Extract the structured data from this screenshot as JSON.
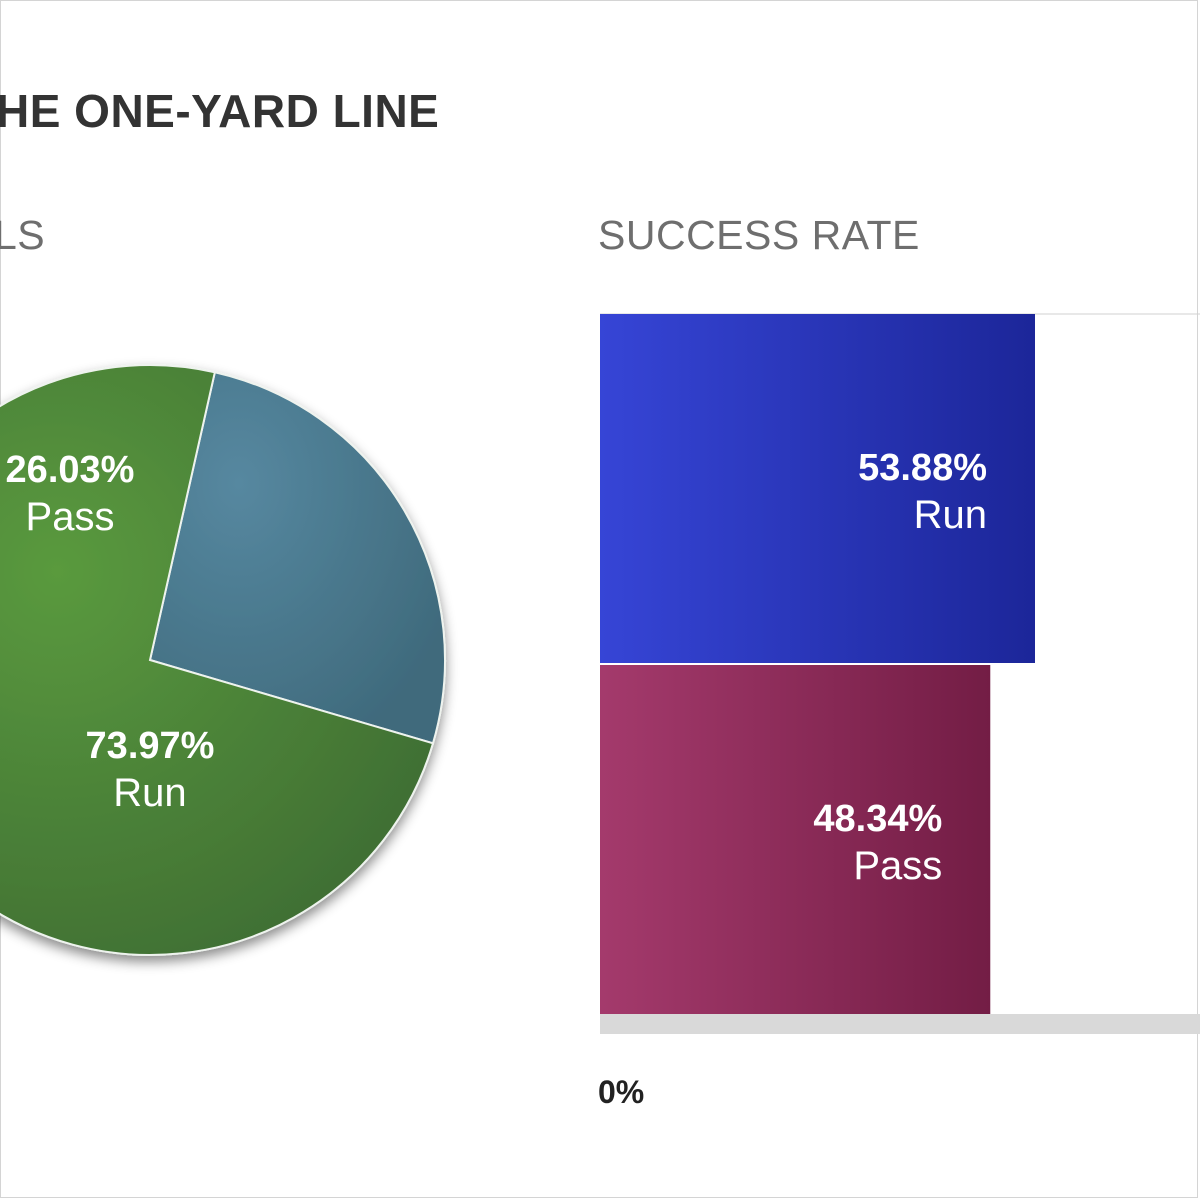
{
  "title": "HE ONE-YARD LINE",
  "pie_subtitle": "LS",
  "bar_subtitle": "SUCCESS RATE",
  "axis_min_label": "0%",
  "chart_data": [
    {
      "type": "pie",
      "title": "LS",
      "slices": [
        {
          "label": "Pass",
          "value": 26.03,
          "value_label": "26.03%",
          "color": "#4e7a8c"
        },
        {
          "label": "Run",
          "value": 73.97,
          "value_label": "73.97%",
          "color": "#4f8a36"
        }
      ]
    },
    {
      "type": "bar",
      "orientation": "horizontal",
      "title": "SUCCESS RATE",
      "categories": [
        "Run",
        "Pass"
      ],
      "values": [
        53.88,
        48.34
      ],
      "value_labels": [
        "53.88%",
        "48.34%"
      ],
      "colors": [
        "#2332b8",
        "#8c2a5a"
      ],
      "xlim": [
        0,
        90
      ],
      "x_tick_labels": [
        "0%"
      ]
    }
  ]
}
